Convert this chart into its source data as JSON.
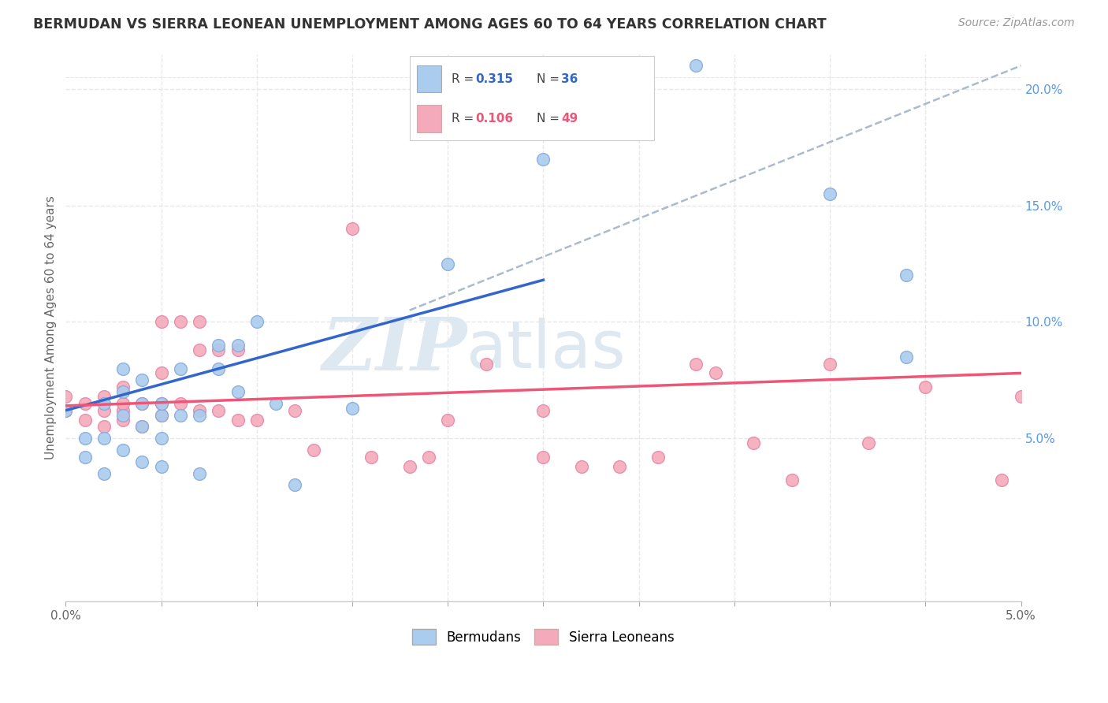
{
  "title": "BERMUDAN VS SIERRA LEONEAN UNEMPLOYMENT AMONG AGES 60 TO 64 YEARS CORRELATION CHART",
  "source": "Source: ZipAtlas.com",
  "ylabel": "Unemployment Among Ages 60 to 64 years",
  "xlim": [
    0.0,
    0.05
  ],
  "ylim": [
    -0.02,
    0.215
  ],
  "xticks": [
    0.0,
    0.005,
    0.01,
    0.015,
    0.02,
    0.025,
    0.03,
    0.035,
    0.04,
    0.045,
    0.05
  ],
  "xticklabels": [
    "0.0%",
    "",
    "",
    "",
    "",
    "",
    "",
    "",
    "",
    "",
    "5.0%"
  ],
  "yticks_right": [
    0.05,
    0.1,
    0.15,
    0.2
  ],
  "ytick_labels_right": [
    "5.0%",
    "10.0%",
    "15.0%",
    "20.0%"
  ],
  "grid_color": "#e8e8e8",
  "background_color": "#ffffff",
  "bermuda_color": "#aaccee",
  "sierra_color": "#f4aabb",
  "bermuda_line_color": "#3366cc",
  "sierra_line_color": "#ee5577",
  "dashed_line_color": "#aabbcc",
  "watermark_zip": "ZIP",
  "watermark_atlas": "atlas",
  "watermark_color": "#dde8f0",
  "legend_R_bermuda": "R = 0.315",
  "legend_N_bermuda": "N = 36",
  "legend_R_sierra": "R = 0.106",
  "legend_N_sierra": "N = 49",
  "bermuda_x": [
    0.0,
    0.001,
    0.001,
    0.002,
    0.002,
    0.002,
    0.003,
    0.003,
    0.003,
    0.003,
    0.004,
    0.004,
    0.004,
    0.004,
    0.005,
    0.005,
    0.005,
    0.005,
    0.006,
    0.006,
    0.007,
    0.007,
    0.008,
    0.008,
    0.009,
    0.009,
    0.01,
    0.011,
    0.012,
    0.015,
    0.02,
    0.025,
    0.033,
    0.04,
    0.044,
    0.044
  ],
  "bermuda_y": [
    0.062,
    0.042,
    0.05,
    0.035,
    0.05,
    0.065,
    0.045,
    0.06,
    0.07,
    0.08,
    0.04,
    0.055,
    0.065,
    0.075,
    0.038,
    0.05,
    0.06,
    0.065,
    0.06,
    0.08,
    0.035,
    0.06,
    0.08,
    0.09,
    0.07,
    0.09,
    0.1,
    0.065,
    0.03,
    0.063,
    0.125,
    0.17,
    0.21,
    0.155,
    0.085,
    0.12
  ],
  "sierra_x": [
    0.0,
    0.0,
    0.001,
    0.001,
    0.002,
    0.002,
    0.002,
    0.003,
    0.003,
    0.003,
    0.003,
    0.004,
    0.004,
    0.005,
    0.005,
    0.005,
    0.005,
    0.006,
    0.006,
    0.007,
    0.007,
    0.007,
    0.008,
    0.008,
    0.009,
    0.009,
    0.01,
    0.012,
    0.013,
    0.015,
    0.016,
    0.018,
    0.019,
    0.02,
    0.022,
    0.025,
    0.025,
    0.027,
    0.029,
    0.031,
    0.033,
    0.034,
    0.036,
    0.038,
    0.04,
    0.042,
    0.045,
    0.049,
    0.05
  ],
  "sierra_y": [
    0.062,
    0.068,
    0.058,
    0.065,
    0.055,
    0.062,
    0.068,
    0.058,
    0.062,
    0.065,
    0.072,
    0.055,
    0.065,
    0.06,
    0.065,
    0.078,
    0.1,
    0.065,
    0.1,
    0.062,
    0.088,
    0.1,
    0.062,
    0.088,
    0.058,
    0.088,
    0.058,
    0.062,
    0.045,
    0.14,
    0.042,
    0.038,
    0.042,
    0.058,
    0.082,
    0.042,
    0.062,
    0.038,
    0.038,
    0.042,
    0.082,
    0.078,
    0.048,
    0.032,
    0.082,
    0.048,
    0.072,
    0.032,
    0.068
  ],
  "bermuda_trend_x": [
    0.0,
    0.025
  ],
  "bermuda_trend_y": [
    0.062,
    0.118
  ],
  "sierra_trend_x": [
    0.0,
    0.05
  ],
  "sierra_trend_y": [
    0.064,
    0.078
  ],
  "dashed_trend_x": [
    0.018,
    0.05
  ],
  "dashed_trend_y": [
    0.105,
    0.21
  ]
}
